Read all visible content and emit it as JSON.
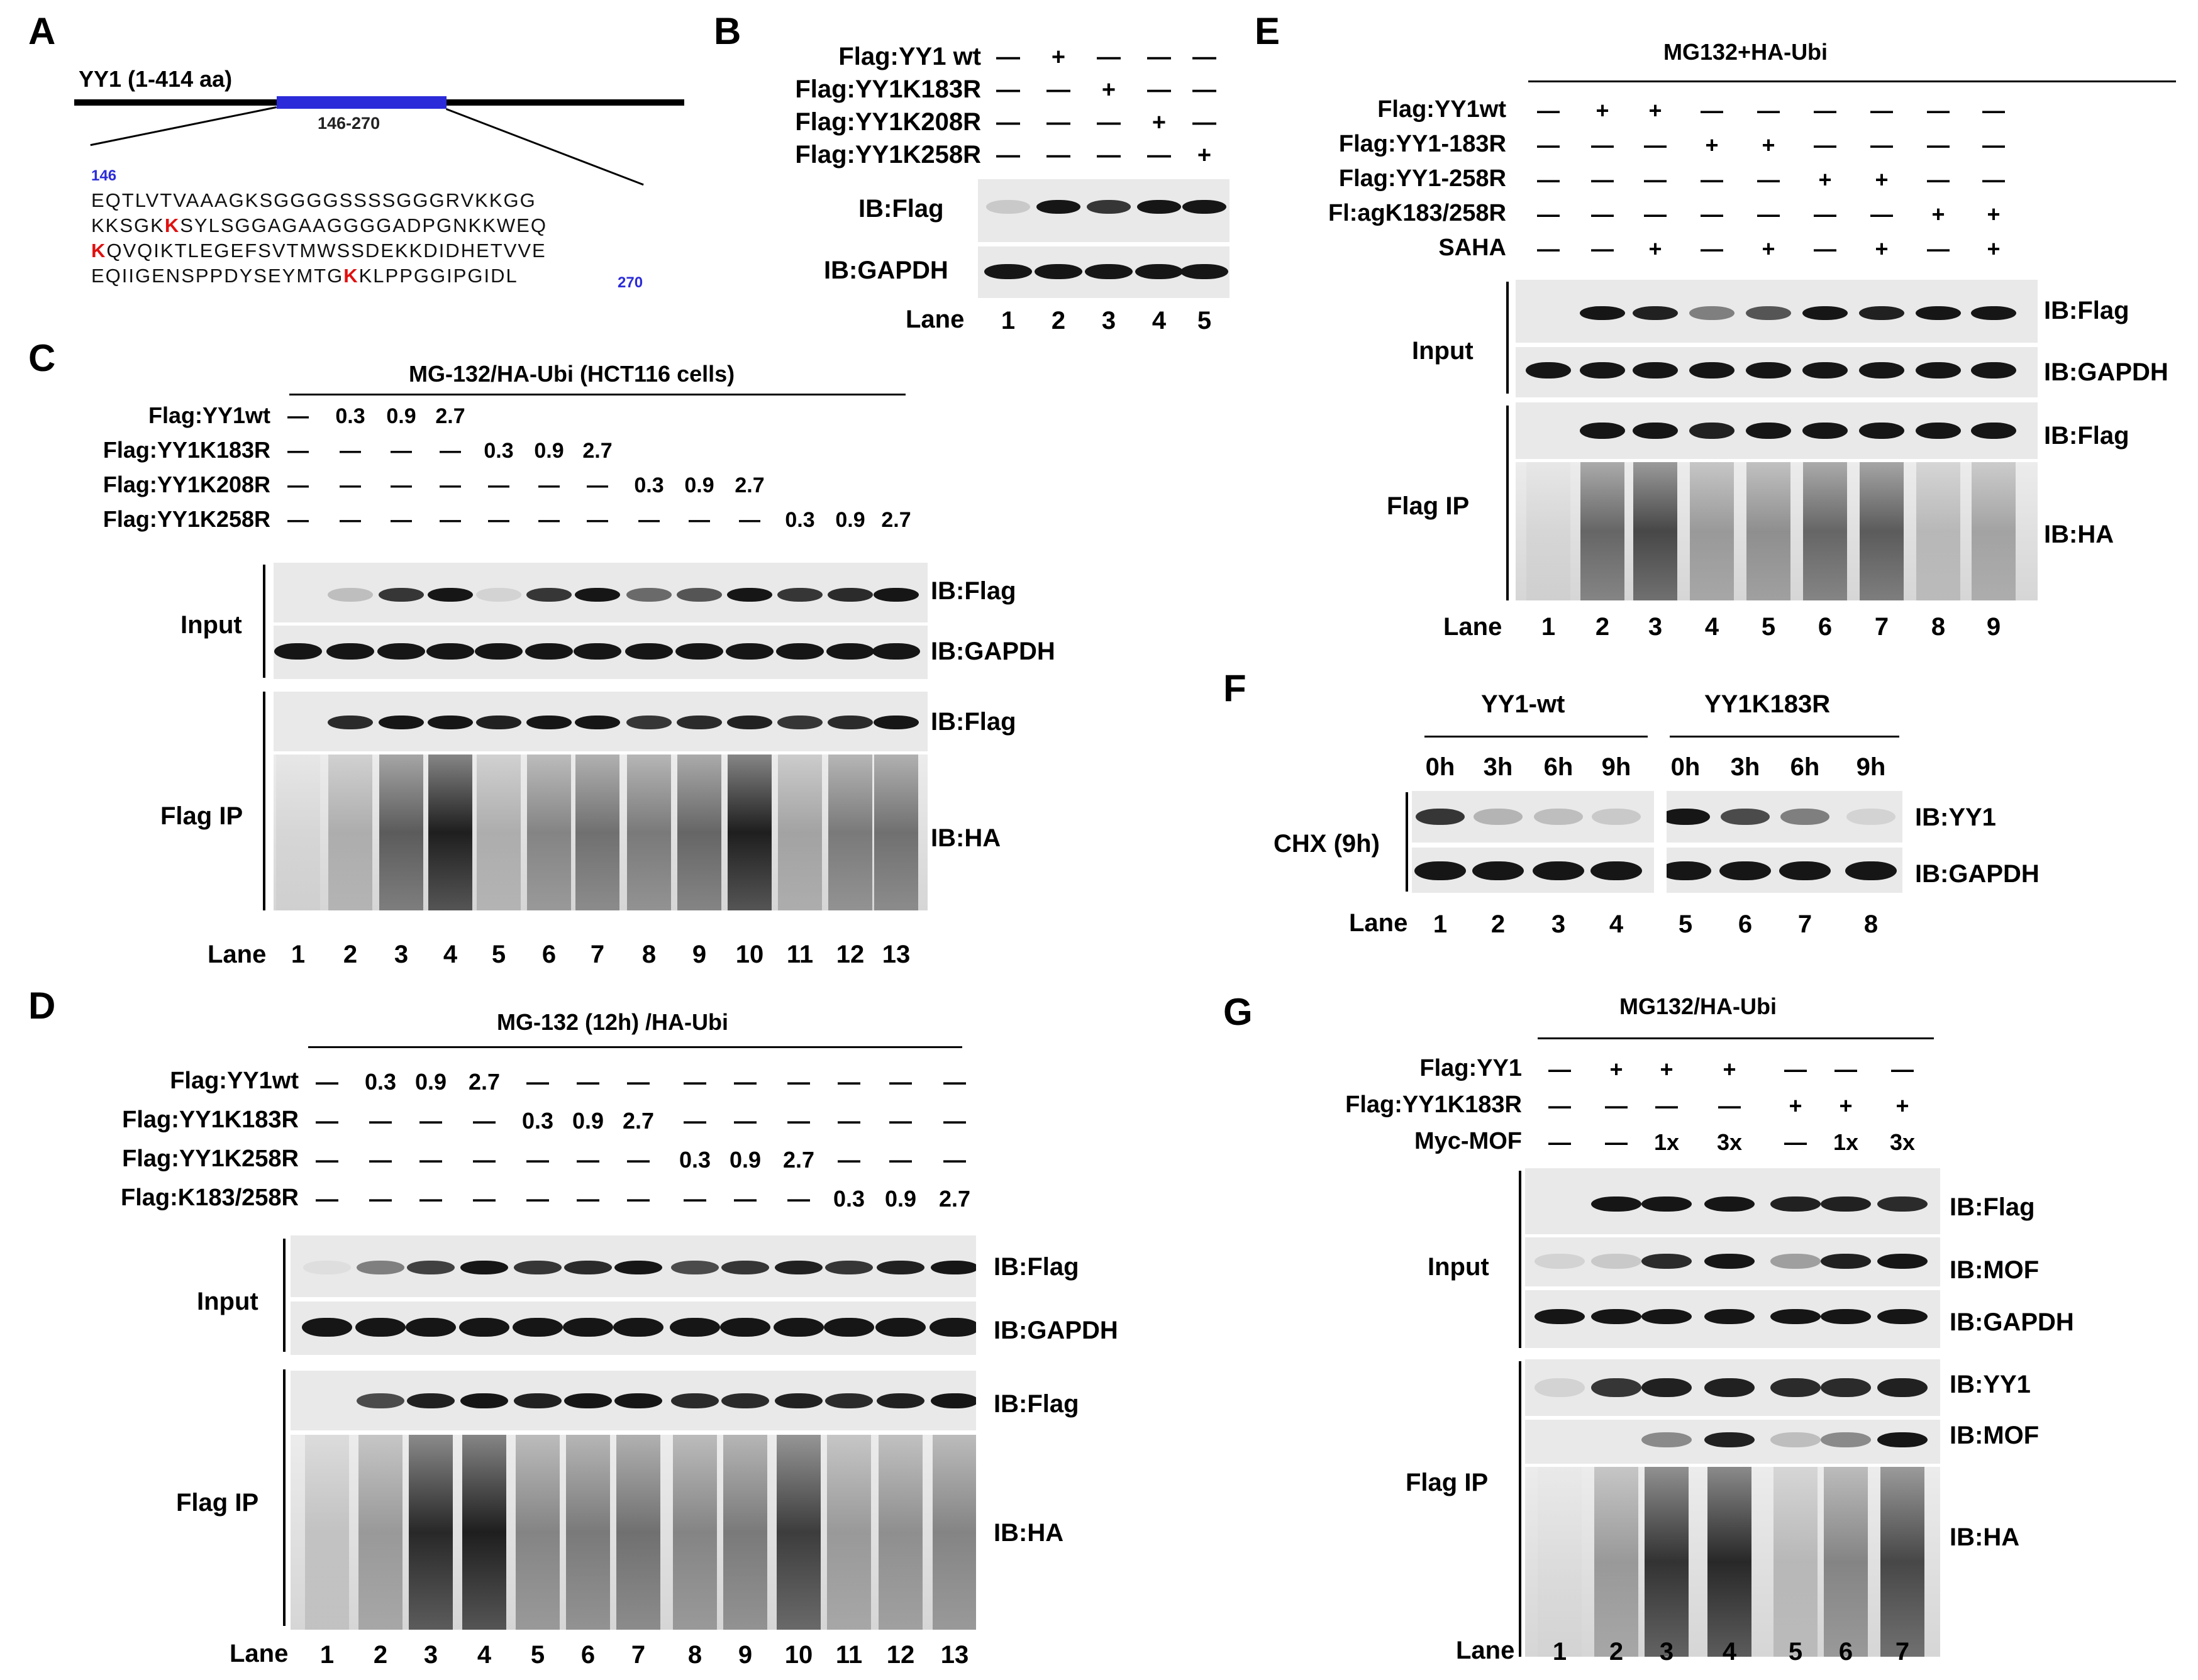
{
  "panels": [
    {
      "letter": "A"
    },
    {
      "letter": "B"
    },
    {
      "letter": "C"
    },
    {
      "letter": "D"
    },
    {
      "letter": "E"
    },
    {
      "letter": "F"
    },
    {
      "letter": "G"
    }
  ],
  "a": {
    "protein": "YY1 (1-414 aa)",
    "domain_range": "146-270",
    "start": "146",
    "end": "270",
    "seq": [
      [
        "EQTLVTVAAAGKSGGGGSSSSGGGRVKKGG"
      ],
      [
        "KKSGK",
        "K",
        "SYLSGGAGAAGGGGADPGNKKWEQ"
      ],
      [
        "",
        "K",
        "QVQIKTLEGEFSVTMWSSDEKKDIDHETVVE"
      ],
      [
        "EQIIGENSPPDYSEYMTG",
        "K",
        "KLPPGGIPGIDL"
      ]
    ],
    "colors": {
      "domain": "#2b2bd9",
      "highlight": "#e01010",
      "number": "#2b2bd9"
    }
  },
  "b": {
    "conds": [
      {
        "label": "Flag:YY1 wt",
        "vals": [
          "—",
          "+",
          "—",
          "—",
          "—"
        ]
      },
      {
        "label": "Flag:YY1K183R",
        "vals": [
          "—",
          "—",
          "+",
          "—",
          "—"
        ]
      },
      {
        "label": "Flag:YY1K208R",
        "vals": [
          "—",
          "—",
          "—",
          "+",
          "—"
        ]
      },
      {
        "label": "Flag:YY1K258R",
        "vals": [
          "—",
          "—",
          "—",
          "—",
          "+"
        ]
      }
    ],
    "ib": [
      "IB:Flag",
      "IB:GAPDH"
    ],
    "lane_label": "Lane",
    "lanes": [
      "1",
      "2",
      "3",
      "4",
      "5"
    ]
  },
  "c": {
    "header": "MG-132/HA-Ubi (HCT116 cells)",
    "conds": [
      {
        "label": "Flag:YY1wt",
        "vals": [
          "—",
          "0.3",
          "0.9",
          "2.7",
          "",
          "",
          "",
          "",
          "",
          "",
          "",
          "",
          ""
        ]
      },
      {
        "label": "Flag:YY1K183R",
        "vals": [
          "—",
          "—",
          "—",
          "—",
          "0.3",
          "0.9",
          "2.7",
          "",
          "",
          "",
          "",
          "",
          ""
        ]
      },
      {
        "label": "Flag:YY1K208R",
        "vals": [
          "—",
          "—",
          "—",
          "—",
          "—",
          "—",
          "—",
          "0.3",
          "0.9",
          "2.7",
          "",
          "",
          ""
        ]
      },
      {
        "label": "Flag:YY1K258R",
        "vals": [
          "—",
          "—",
          "—",
          "—",
          "—",
          "—",
          "—",
          "—",
          "—",
          "—",
          "0.3",
          "0.9",
          "2.7"
        ]
      }
    ],
    "input": "Input",
    "ip": "Flag IP",
    "ib": [
      "IB:Flag",
      "IB:GAPDH",
      "IB:Flag",
      "IB:HA"
    ],
    "lane_label": "Lane",
    "lanes": [
      "1",
      "2",
      "3",
      "4",
      "5",
      "6",
      "7",
      "8",
      "9",
      "10",
      "11",
      "12",
      "13"
    ],
    "tail_dashes": "—   —   —   —   —   —"
  },
  "d": {
    "header": "MG-132 (12h) /HA-Ubi",
    "conds": [
      {
        "label": "Flag:YY1wt",
        "vals": [
          "—",
          "0.3",
          "0.9",
          "2.7",
          "—",
          "—",
          "—",
          "—",
          "—",
          "—",
          "—",
          "—",
          "—"
        ]
      },
      {
        "label": "Flag:YY1K183R",
        "vals": [
          "—",
          "—",
          "—",
          "—",
          "0.3",
          "0.9",
          "2.7",
          "—",
          "—",
          "—",
          "—",
          "—",
          "—"
        ]
      },
      {
        "label": "Flag:YY1K258R",
        "vals": [
          "—",
          "—",
          "—",
          "—",
          "—",
          "—",
          "—",
          "0.3",
          "0.9",
          "2.7",
          "—",
          "—",
          "—"
        ]
      },
      {
        "label": "Flag:K183/258R",
        "vals": [
          "—",
          "—",
          "—",
          "—",
          "—",
          "—",
          "—",
          "—",
          "—",
          "—",
          "0.3",
          "0.9",
          "2.7"
        ]
      }
    ],
    "input": "Input",
    "ip": "Flag IP",
    "ib": [
      "IB:Flag",
      "IB:GAPDH",
      "IB:Flag",
      "IB:HA"
    ],
    "lane_label": "Lane",
    "lanes": [
      "1",
      "2",
      "3",
      "4",
      "5",
      "6",
      "7",
      "8",
      "9",
      "10",
      "11",
      "12",
      "13"
    ]
  },
  "e": {
    "header": "MG132+HA-Ubi",
    "conds": [
      {
        "label": "Flag:YY1wt",
        "vals": [
          "—",
          "+",
          "+",
          "—",
          "—",
          "—",
          "—",
          "—",
          "—"
        ]
      },
      {
        "label": "Flag:YY1-183R",
        "vals": [
          "—",
          "—",
          "—",
          "+",
          "+",
          "—",
          "—",
          "—",
          "—"
        ]
      },
      {
        "label": "Flag:YY1-258R",
        "vals": [
          "—",
          "—",
          "—",
          "—",
          "—",
          "+",
          "+",
          "—",
          "—"
        ]
      },
      {
        "label": "Fl:agK183/258R",
        "vals": [
          "—",
          "—",
          "—",
          "—",
          "—",
          "—",
          "—",
          "+",
          "+"
        ]
      },
      {
        "label": "SAHA",
        "vals": [
          "—",
          "—",
          "+",
          "—",
          "+",
          "—",
          "+",
          "—",
          "+"
        ]
      }
    ],
    "input": "Input",
    "ip": "Flag IP",
    "ib": [
      "IB:Flag",
      "IB:GAPDH",
      "IB:Flag",
      "IB:HA"
    ],
    "lane_label": "Lane",
    "lanes": [
      "1",
      "2",
      "3",
      "4",
      "5",
      "6",
      "7",
      "8",
      "9"
    ]
  },
  "f": {
    "groups": [
      "YY1-wt",
      "YY1K183R"
    ],
    "times": [
      "0h",
      "3h",
      "6h",
      "9h",
      "0h",
      "3h",
      "6h",
      "9h"
    ],
    "chx": "CHX (9h)",
    "ib": [
      "IB:YY1",
      "IB:GAPDH"
    ],
    "lane_label": "Lane",
    "lanes": [
      "1",
      "2",
      "3",
      "4",
      "5",
      "6",
      "7",
      "8"
    ]
  },
  "g": {
    "header": "MG132/HA-Ubi",
    "conds": [
      {
        "label": "Flag:YY1",
        "vals": [
          "—",
          "+",
          "+",
          "+",
          "—",
          "—",
          "—"
        ]
      },
      {
        "label": "Flag:YY1K183R",
        "vals": [
          "—",
          "—",
          "—",
          "—",
          "+",
          "+",
          "+"
        ]
      },
      {
        "label": "Myc-MOF",
        "vals": [
          "—",
          "—",
          "1x",
          "3x",
          "—",
          "1x",
          "3x"
        ]
      }
    ],
    "input": "Input",
    "ip": "Flag IP",
    "ib": [
      "IB:Flag",
      "IB:MOF",
      "IB:GAPDH",
      "IB:YY1",
      "IB:MOF",
      "IB:HA"
    ],
    "lane_label": "Lane",
    "lanes": [
      "1",
      "2",
      "3",
      "4",
      "5",
      "6",
      "7"
    ]
  }
}
